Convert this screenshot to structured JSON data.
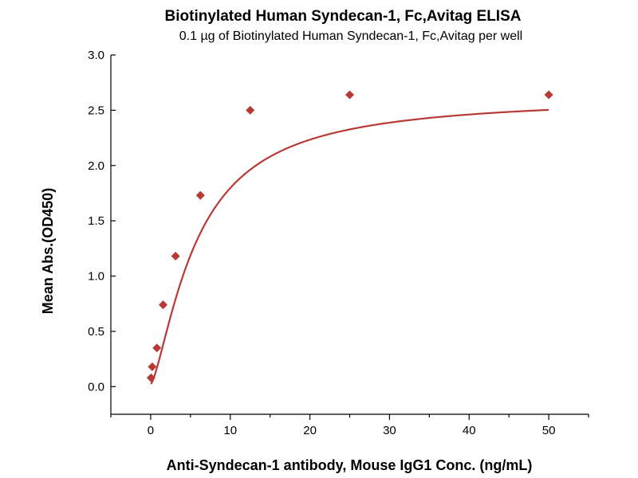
{
  "chart_data": {
    "type": "scatter",
    "title": "Biotinylated Human Syndecan-1, Fc,Avitag ELISA",
    "subtitle": "0.1 µg of Biotinylated Human Syndecan-1, Fc,Avitag per well",
    "xlabel": "Anti-Syndecan-1 antibody, Mouse IgG1 Conc. (ng/mL)",
    "ylabel": "Mean Abs.(OD450)",
    "xlim": [
      -5,
      55
    ],
    "ylim": [
      -0.25,
      3.0
    ],
    "x_ticks": [
      0,
      10,
      20,
      30,
      40,
      50
    ],
    "x_tick_labels": [
      "0",
      "10",
      "20",
      "30",
      "40",
      "50"
    ],
    "y_ticks": [
      0.0,
      0.5,
      1.0,
      1.5,
      2.0,
      2.5,
      3.0
    ],
    "y_tick_labels": [
      "0.0",
      "0.5",
      "1.0",
      "1.5",
      "2.0",
      "2.5",
      "3.0"
    ],
    "grid": false,
    "legend": "none",
    "series": [
      {
        "x": [
          0.049,
          0.195,
          0.781,
          1.563,
          3.125,
          6.25,
          12.5,
          25,
          50
        ],
        "y": [
          0.08,
          0.18,
          0.35,
          0.74,
          1.18,
          1.73,
          2.5,
          2.64,
          2.64
        ],
        "marker": "diamond",
        "color": "#b83a36",
        "fit": "4PL curve"
      }
    ]
  }
}
